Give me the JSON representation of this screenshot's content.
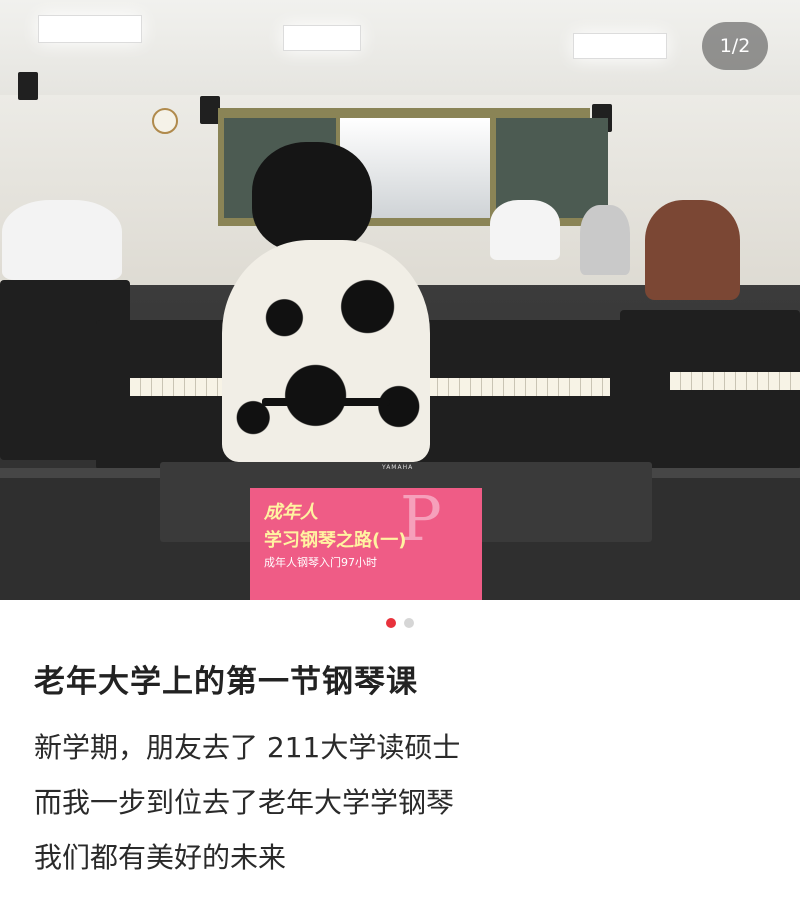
{
  "gallery": {
    "counter": "1/2",
    "dots": [
      {
        "active": true
      },
      {
        "active": false
      }
    ]
  },
  "photo": {
    "book_title_line1": "成年人",
    "book_title_line2": "学习钢琴之路(一)",
    "book_subtitle": "成年人钢琴入门97小时",
    "piano_brand": "YAMAHA"
  },
  "post": {
    "title": "老年大学上的第一节钢琴课",
    "lines": [
      "新学期，朋友去了 211大学读硕士",
      "而我一步到位去了老年大学学钢琴",
      "我们都有美好的未来"
    ]
  },
  "colors": {
    "dot_active": "#e8323c",
    "dot_inactive": "#d6d6d6",
    "pager_bg": "rgba(70,70,70,0.55)"
  }
}
